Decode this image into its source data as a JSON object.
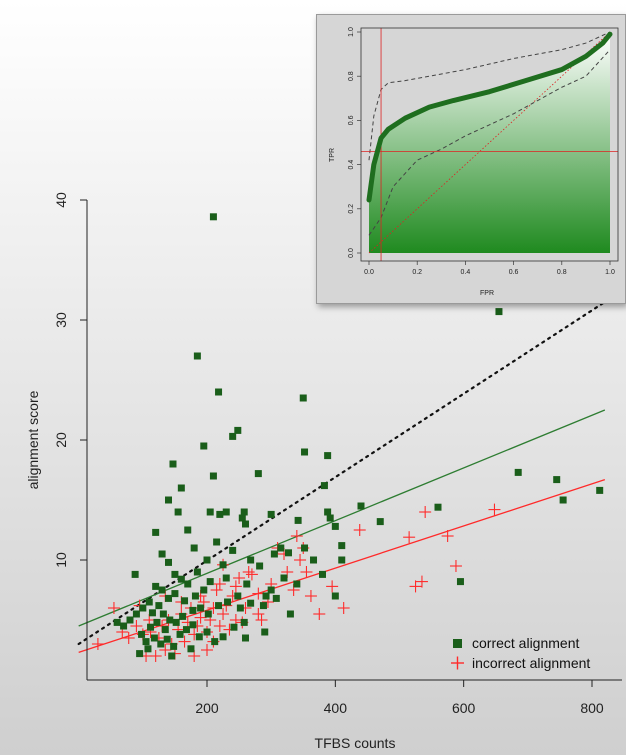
{
  "colors": {
    "correct": "#1a5e1a",
    "incorrect": "#ff2a2a",
    "dotted": "#111111",
    "greenLine": "#2e7d32",
    "redLine": "#ff2a2a",
    "insetCurve": "#1f6e1f",
    "insetDashed": "#444444",
    "insetRef": "#dd2222"
  },
  "chart_data": [
    {
      "type": "scatter",
      "title": "",
      "xlabel": "TFBS counts",
      "ylabel": "alignment score",
      "xlim": [
        0,
        820
      ],
      "ylim": [
        0,
        40
      ],
      "xticks": [
        200,
        400,
        600,
        800
      ],
      "yticks": [
        10,
        20,
        30,
        40
      ],
      "legend_position": "bottom-right",
      "series": [
        {
          "name": "correct alignment",
          "marker": "square",
          "points": [
            [
              210,
              38.6
            ],
            [
              185,
              27.0
            ],
            [
              218,
              24.0
            ],
            [
              240,
              20.3
            ],
            [
              248,
              20.8
            ],
            [
              195,
              19.5
            ],
            [
              147,
              18.0
            ],
            [
              210,
              17.0
            ],
            [
              280,
              17.2
            ],
            [
              350,
              23.5
            ],
            [
              352,
              19.0
            ],
            [
              388,
              18.7
            ],
            [
              160,
              16.0
            ],
            [
              140,
              15.0
            ],
            [
              155,
              14.0
            ],
            [
              205,
              14.0
            ],
            [
              220,
              13.8
            ],
            [
              230,
              14.0
            ],
            [
              258,
              14.0
            ],
            [
              255,
              13.5
            ],
            [
              260,
              13.0
            ],
            [
              300,
              13.8
            ],
            [
              342,
              13.3
            ],
            [
              383,
              16.2
            ],
            [
              388,
              14.0
            ],
            [
              392,
              13.5
            ],
            [
              440,
              14.5
            ],
            [
              470,
              13.2
            ],
            [
              560,
              14.4
            ],
            [
              685,
              17.3
            ],
            [
              745,
              16.7
            ],
            [
              755,
              15.0
            ],
            [
              812,
              15.8
            ],
            [
              655,
              30.7
            ],
            [
              120,
              12.3
            ],
            [
              130,
              10.5
            ],
            [
              170,
              12.5
            ],
            [
              180,
              11.0
            ],
            [
              200,
              10.0
            ],
            [
              215,
              11.5
            ],
            [
              240,
              10.8
            ],
            [
              268,
              10.0
            ],
            [
              282,
              9.5
            ],
            [
              305,
              10.5
            ],
            [
              315,
              11.0
            ],
            [
              327,
              10.6
            ],
            [
              352,
              11.0
            ],
            [
              366,
              10.0
            ],
            [
              400,
              12.8
            ],
            [
              410,
              11.2
            ],
            [
              410,
              10.0
            ],
            [
              380,
              8.8
            ],
            [
              340,
              8.0
            ],
            [
              320,
              8.5
            ],
            [
              300,
              7.5
            ],
            [
              292,
              7.0
            ],
            [
              262,
              8.0
            ],
            [
              248,
              7.0
            ],
            [
              230,
              8.5
            ],
            [
              205,
              8.2
            ],
            [
              195,
              7.5
            ],
            [
              182,
              7.0
            ],
            [
              170,
              8.0
            ],
            [
              160,
              8.4
            ],
            [
              150,
              7.2
            ],
            [
              140,
              6.8
            ],
            [
              130,
              7.5
            ],
            [
              120,
              7.8
            ],
            [
              110,
              6.5
            ],
            [
              100,
              6.0
            ],
            [
              90,
              5.5
            ],
            [
              80,
              5.0
            ],
            [
              70,
              4.5
            ],
            [
              60,
              4.8
            ],
            [
              88,
              8.8
            ],
            [
              112,
              4.4
            ],
            [
              122,
              4.8
            ],
            [
              132,
              5.5
            ],
            [
              142,
              5.0
            ],
            [
              152,
              4.8
            ],
            [
              162,
              5.3
            ],
            [
              178,
              5.8
            ],
            [
              190,
              6.0
            ],
            [
              202,
              5.5
            ],
            [
              218,
              6.2
            ],
            [
              232,
              6.5
            ],
            [
              252,
              6.0
            ],
            [
              268,
              6.4
            ],
            [
              288,
              6.2
            ],
            [
              308,
              6.8
            ],
            [
              330,
              5.5
            ],
            [
              400,
              7.0
            ],
            [
              595,
              8.2
            ],
            [
              105,
              3.2
            ],
            [
              118,
              3.5
            ],
            [
              128,
              3.0
            ],
            [
              138,
              3.4
            ],
            [
              148,
              2.8
            ],
            [
              158,
              3.8
            ],
            [
              168,
              4.2
            ],
            [
              178,
              4.6
            ],
            [
              188,
              3.6
            ],
            [
              200,
              4.0
            ],
            [
              212,
              3.2
            ],
            [
              225,
              3.6
            ],
            [
              242,
              4.4
            ],
            [
              258,
              4.8
            ],
            [
              98,
              3.8
            ],
            [
              108,
              2.6
            ],
            [
              145,
              2.0
            ],
            [
              135,
              4.2
            ],
            [
              125,
              6.2
            ],
            [
              115,
              5.6
            ],
            [
              165,
              6.6
            ],
            [
              185,
              9.0
            ],
            [
              225,
              9.6
            ],
            [
              175,
              2.6
            ],
            [
              95,
              2.2
            ],
            [
              150,
              8.8
            ],
            [
              140,
              9.8
            ],
            [
              260,
              3.5
            ],
            [
              290,
              4.0
            ]
          ]
        },
        {
          "name": "incorrect alignment",
          "marker": "plus",
          "points": [
            [
              30,
              3.0
            ],
            [
              55,
              6.0
            ],
            [
              68,
              4.0
            ],
            [
              78,
              3.5
            ],
            [
              90,
              4.5
            ],
            [
              100,
              3.8
            ],
            [
              105,
              2.0
            ],
            [
              112,
              4.0
            ],
            [
              120,
              2.0
            ],
            [
              125,
              3.5
            ],
            [
              130,
              4.5
            ],
            [
              135,
              2.5
            ],
            [
              140,
              5.0
            ],
            [
              145,
              3.0
            ],
            [
              150,
              2.2
            ],
            [
              155,
              4.2
            ],
            [
              160,
              5.5
            ],
            [
              165,
              3.2
            ],
            [
              170,
              4.8
            ],
            [
              175,
              6.0
            ],
            [
              180,
              3.8
            ],
            [
              185,
              4.5
            ],
            [
              190,
              5.2
            ],
            [
              195,
              6.5
            ],
            [
              200,
              4.0
            ],
            [
              205,
              5.0
            ],
            [
              210,
              6.0
            ],
            [
              215,
              7.5
            ],
            [
              220,
              4.5
            ],
            [
              225,
              5.5
            ],
            [
              230,
              6.2
            ],
            [
              235,
              4.2
            ],
            [
              240,
              7.0
            ],
            [
              245,
              5.0
            ],
            [
              250,
              8.5
            ],
            [
              255,
              4.8
            ],
            [
              260,
              6.0
            ],
            [
              270,
              8.8
            ],
            [
              280,
              5.5
            ],
            [
              285,
              5.0
            ],
            [
              295,
              6.5
            ],
            [
              310,
              11.0
            ],
            [
              320,
              10.5
            ],
            [
              325,
              9.0
            ],
            [
              335,
              7.5
            ],
            [
              345,
              10.0
            ],
            [
              355,
              9.0
            ],
            [
              362,
              7.0
            ],
            [
              375,
              5.5
            ],
            [
              395,
              7.8
            ],
            [
              413,
              6.0
            ],
            [
              438,
              12.5
            ],
            [
              515,
              11.9
            ],
            [
              525,
              7.8
            ],
            [
              535,
              8.2
            ],
            [
              540,
              14.0
            ],
            [
              575,
              12.0
            ],
            [
              588,
              9.5
            ],
            [
              648,
              14.2
            ],
            [
              350,
              11.0
            ],
            [
              300,
              8.0
            ],
            [
              265,
              9.0
            ],
            [
              245,
              7.8
            ],
            [
              220,
              8.0
            ],
            [
              190,
              7.0
            ],
            [
              160,
              6.5
            ],
            [
              135,
              7.0
            ],
            [
              110,
              5.0
            ],
            [
              95,
              6.2
            ],
            [
              200,
              2.5
            ],
            [
              180,
              2.0
            ],
            [
              225,
              9.6
            ],
            [
              210,
              3.2
            ],
            [
              340,
              12.0
            ],
            [
              280,
              7.2
            ]
          ]
        }
      ],
      "lines": [
        {
          "kind": "dotted",
          "x": [
            0,
            820
          ],
          "y": [
            3.0,
            31.5
          ]
        },
        {
          "kind": "correct-fit",
          "x": [
            0,
            820
          ],
          "y": [
            4.5,
            22.5
          ]
        },
        {
          "kind": "incorrect-fit",
          "x": [
            0,
            820
          ],
          "y": [
            2.3,
            16.7
          ]
        }
      ]
    },
    {
      "type": "line",
      "title": "",
      "xlabel": "FPR",
      "ylabel": "TPR",
      "xlim": [
        0,
        1
      ],
      "ylim": [
        0,
        1
      ],
      "xticks": [
        "0.0",
        "0.2",
        "0.4",
        "0.6",
        "0.8",
        "1.0"
      ],
      "yticks": [
        "0.0",
        "0.2",
        "0.4",
        "0.6",
        "0.8",
        "1.0"
      ],
      "cutoff": {
        "fpr": 0.05,
        "tpr": 0.46
      },
      "series": [
        {
          "name": "",
          "x": [
            0.0,
            0.02,
            0.05,
            0.08,
            0.15,
            0.25,
            0.35,
            0.5,
            0.65,
            0.8,
            0.9,
            0.97,
            1.0
          ],
          "y": [
            0.24,
            0.4,
            0.52,
            0.56,
            0.61,
            0.66,
            0.69,
            0.73,
            0.78,
            0.83,
            0.89,
            0.95,
            0.99
          ]
        }
      ],
      "upper_band": {
        "x": [
          0.0,
          0.02,
          0.05,
          0.08,
          0.15,
          0.25,
          0.4,
          0.6,
          0.8,
          0.9,
          1.0
        ],
        "y": [
          0.42,
          0.62,
          0.74,
          0.77,
          0.78,
          0.8,
          0.83,
          0.88,
          0.92,
          0.95,
          1.0
        ]
      },
      "lower_band": {
        "x": [
          0.0,
          0.05,
          0.1,
          0.2,
          0.3,
          0.4,
          0.5,
          0.6,
          0.7,
          0.8,
          0.9,
          1.0
        ],
        "y": [
          0.08,
          0.16,
          0.3,
          0.42,
          0.47,
          0.53,
          0.58,
          0.63,
          0.69,
          0.75,
          0.8,
          0.92
        ]
      }
    }
  ]
}
